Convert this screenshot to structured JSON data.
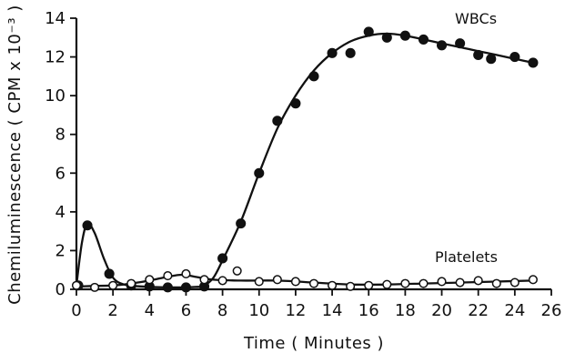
{
  "chart_data": {
    "type": "scatter",
    "title": "",
    "xlabel": "Time ( Minutes )",
    "ylabel": "Chemiluminescence ( CPM x 10⁻³ )",
    "xlim": [
      0,
      26
    ],
    "ylim": [
      0,
      14
    ],
    "xticks": [
      0,
      2,
      4,
      6,
      8,
      10,
      12,
      14,
      16,
      18,
      20,
      22,
      24,
      26
    ],
    "yticks": [
      0,
      2,
      4,
      6,
      8,
      10,
      12,
      14
    ],
    "grid": false,
    "legend": "none",
    "series": [
      {
        "name": "WBCs",
        "marker": "filled-circle",
        "color": "#111111",
        "points": [
          [
            0.1,
            0.2
          ],
          [
            0.6,
            3.3
          ],
          [
            1.8,
            0.8
          ],
          [
            3,
            0.2
          ],
          [
            4,
            0.15
          ],
          [
            5,
            0.1
          ],
          [
            6,
            0.1
          ],
          [
            7,
            0.15
          ],
          [
            8,
            1.6
          ],
          [
            9,
            3.4
          ],
          [
            10,
            6.0
          ],
          [
            11,
            8.7
          ],
          [
            12,
            9.6
          ],
          [
            13,
            11.0
          ],
          [
            14,
            12.2
          ],
          [
            15,
            12.2
          ],
          [
            16,
            13.3
          ],
          [
            17,
            13.0
          ],
          [
            18,
            13.1
          ],
          [
            19,
            12.9
          ],
          [
            20,
            12.6
          ],
          [
            21,
            12.7
          ],
          [
            22,
            12.1
          ],
          [
            22.7,
            11.9
          ],
          [
            24,
            12.0
          ],
          [
            25,
            11.7
          ]
        ],
        "curve": [
          [
            0,
            0.2
          ],
          [
            0.3,
            2.4
          ],
          [
            0.6,
            3.4
          ],
          [
            1.0,
            2.9
          ],
          [
            1.5,
            1.6
          ],
          [
            2.0,
            0.6
          ],
          [
            2.6,
            0.25
          ],
          [
            3.5,
            0.15
          ],
          [
            5,
            0.1
          ],
          [
            6.5,
            0.12
          ],
          [
            7,
            0.2
          ],
          [
            7.5,
            0.6
          ],
          [
            8,
            1.5
          ],
          [
            9,
            3.5
          ],
          [
            10,
            6.0
          ],
          [
            11,
            8.3
          ],
          [
            12,
            10.0
          ],
          [
            13,
            11.3
          ],
          [
            14,
            12.2
          ],
          [
            15,
            12.8
          ],
          [
            16,
            13.1
          ],
          [
            17,
            13.2
          ],
          [
            18,
            13.1
          ],
          [
            19,
            12.9
          ],
          [
            20,
            12.7
          ],
          [
            21,
            12.5
          ],
          [
            22,
            12.3
          ],
          [
            23,
            12.1
          ],
          [
            24,
            11.9
          ],
          [
            25,
            11.7
          ]
        ]
      },
      {
        "name": "Platelets",
        "marker": "open-circle",
        "color": "#111111",
        "points": [
          [
            0,
            0.2
          ],
          [
            1,
            0.1
          ],
          [
            2,
            0.2
          ],
          [
            3,
            0.3
          ],
          [
            4,
            0.5
          ],
          [
            5,
            0.7
          ],
          [
            6,
            0.8
          ],
          [
            7,
            0.5
          ],
          [
            8,
            0.45
          ],
          [
            8.8,
            0.95
          ],
          [
            10,
            0.4
          ],
          [
            11,
            0.5
          ],
          [
            12,
            0.4
          ],
          [
            13,
            0.3
          ],
          [
            14,
            0.2
          ],
          [
            15,
            0.15
          ],
          [
            16,
            0.2
          ],
          [
            17,
            0.25
          ],
          [
            18,
            0.3
          ],
          [
            19,
            0.3
          ],
          [
            20,
            0.4
          ],
          [
            21,
            0.35
          ],
          [
            22,
            0.45
          ],
          [
            23,
            0.3
          ],
          [
            24,
            0.35
          ],
          [
            25,
            0.5
          ]
        ],
        "curve": [
          [
            0,
            0.15
          ],
          [
            2,
            0.2
          ],
          [
            3,
            0.3
          ],
          [
            4,
            0.45
          ],
          [
            5,
            0.65
          ],
          [
            5.8,
            0.75
          ],
          [
            6.5,
            0.65
          ],
          [
            7.5,
            0.5
          ],
          [
            9,
            0.45
          ],
          [
            11,
            0.45
          ],
          [
            13,
            0.35
          ],
          [
            15,
            0.25
          ],
          [
            17,
            0.25
          ],
          [
            19,
            0.3
          ],
          [
            21,
            0.35
          ],
          [
            23,
            0.4
          ],
          [
            25,
            0.45
          ]
        ]
      }
    ]
  }
}
